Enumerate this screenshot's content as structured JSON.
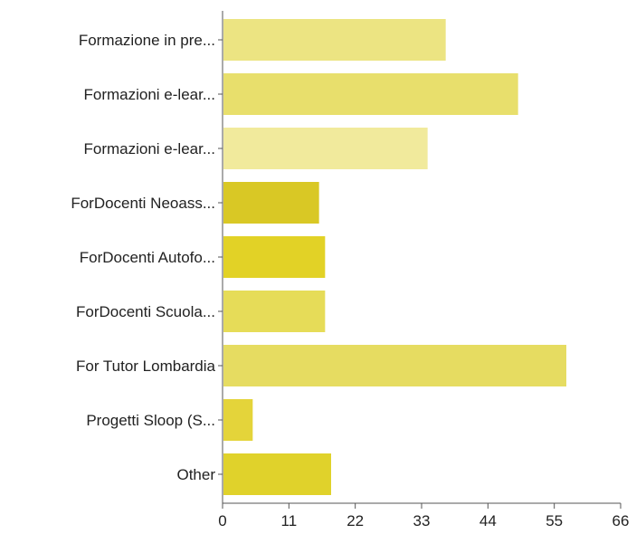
{
  "chart_data": {
    "type": "bar",
    "orientation": "horizontal",
    "title": "",
    "xlabel": "",
    "ylabel": "",
    "categories": [
      "Formazione in pre...",
      "Formazioni e-lear...",
      "Formazioni e-lear...",
      "ForDocenti Neoass...",
      "ForDocenti Autofo...",
      "ForDocenti Scuola...",
      "For Tutor Lombardia",
      "Progetti Sloop (S...",
      "Other"
    ],
    "values": [
      37,
      49,
      34,
      16,
      17,
      17,
      57,
      5,
      18
    ],
    "xlim": [
      0,
      66
    ],
    "xticks": [
      "0",
      "11",
      "22",
      "33",
      "44",
      "55",
      "66"
    ],
    "grid": false,
    "colors": [
      "#ece482",
      "#e8df6c",
      "#f1ea9c",
      "#d9c825",
      "#e2d226",
      "#e6dc58",
      "#e6dc61",
      "#e4d43a",
      "#e0d22b"
    ]
  }
}
